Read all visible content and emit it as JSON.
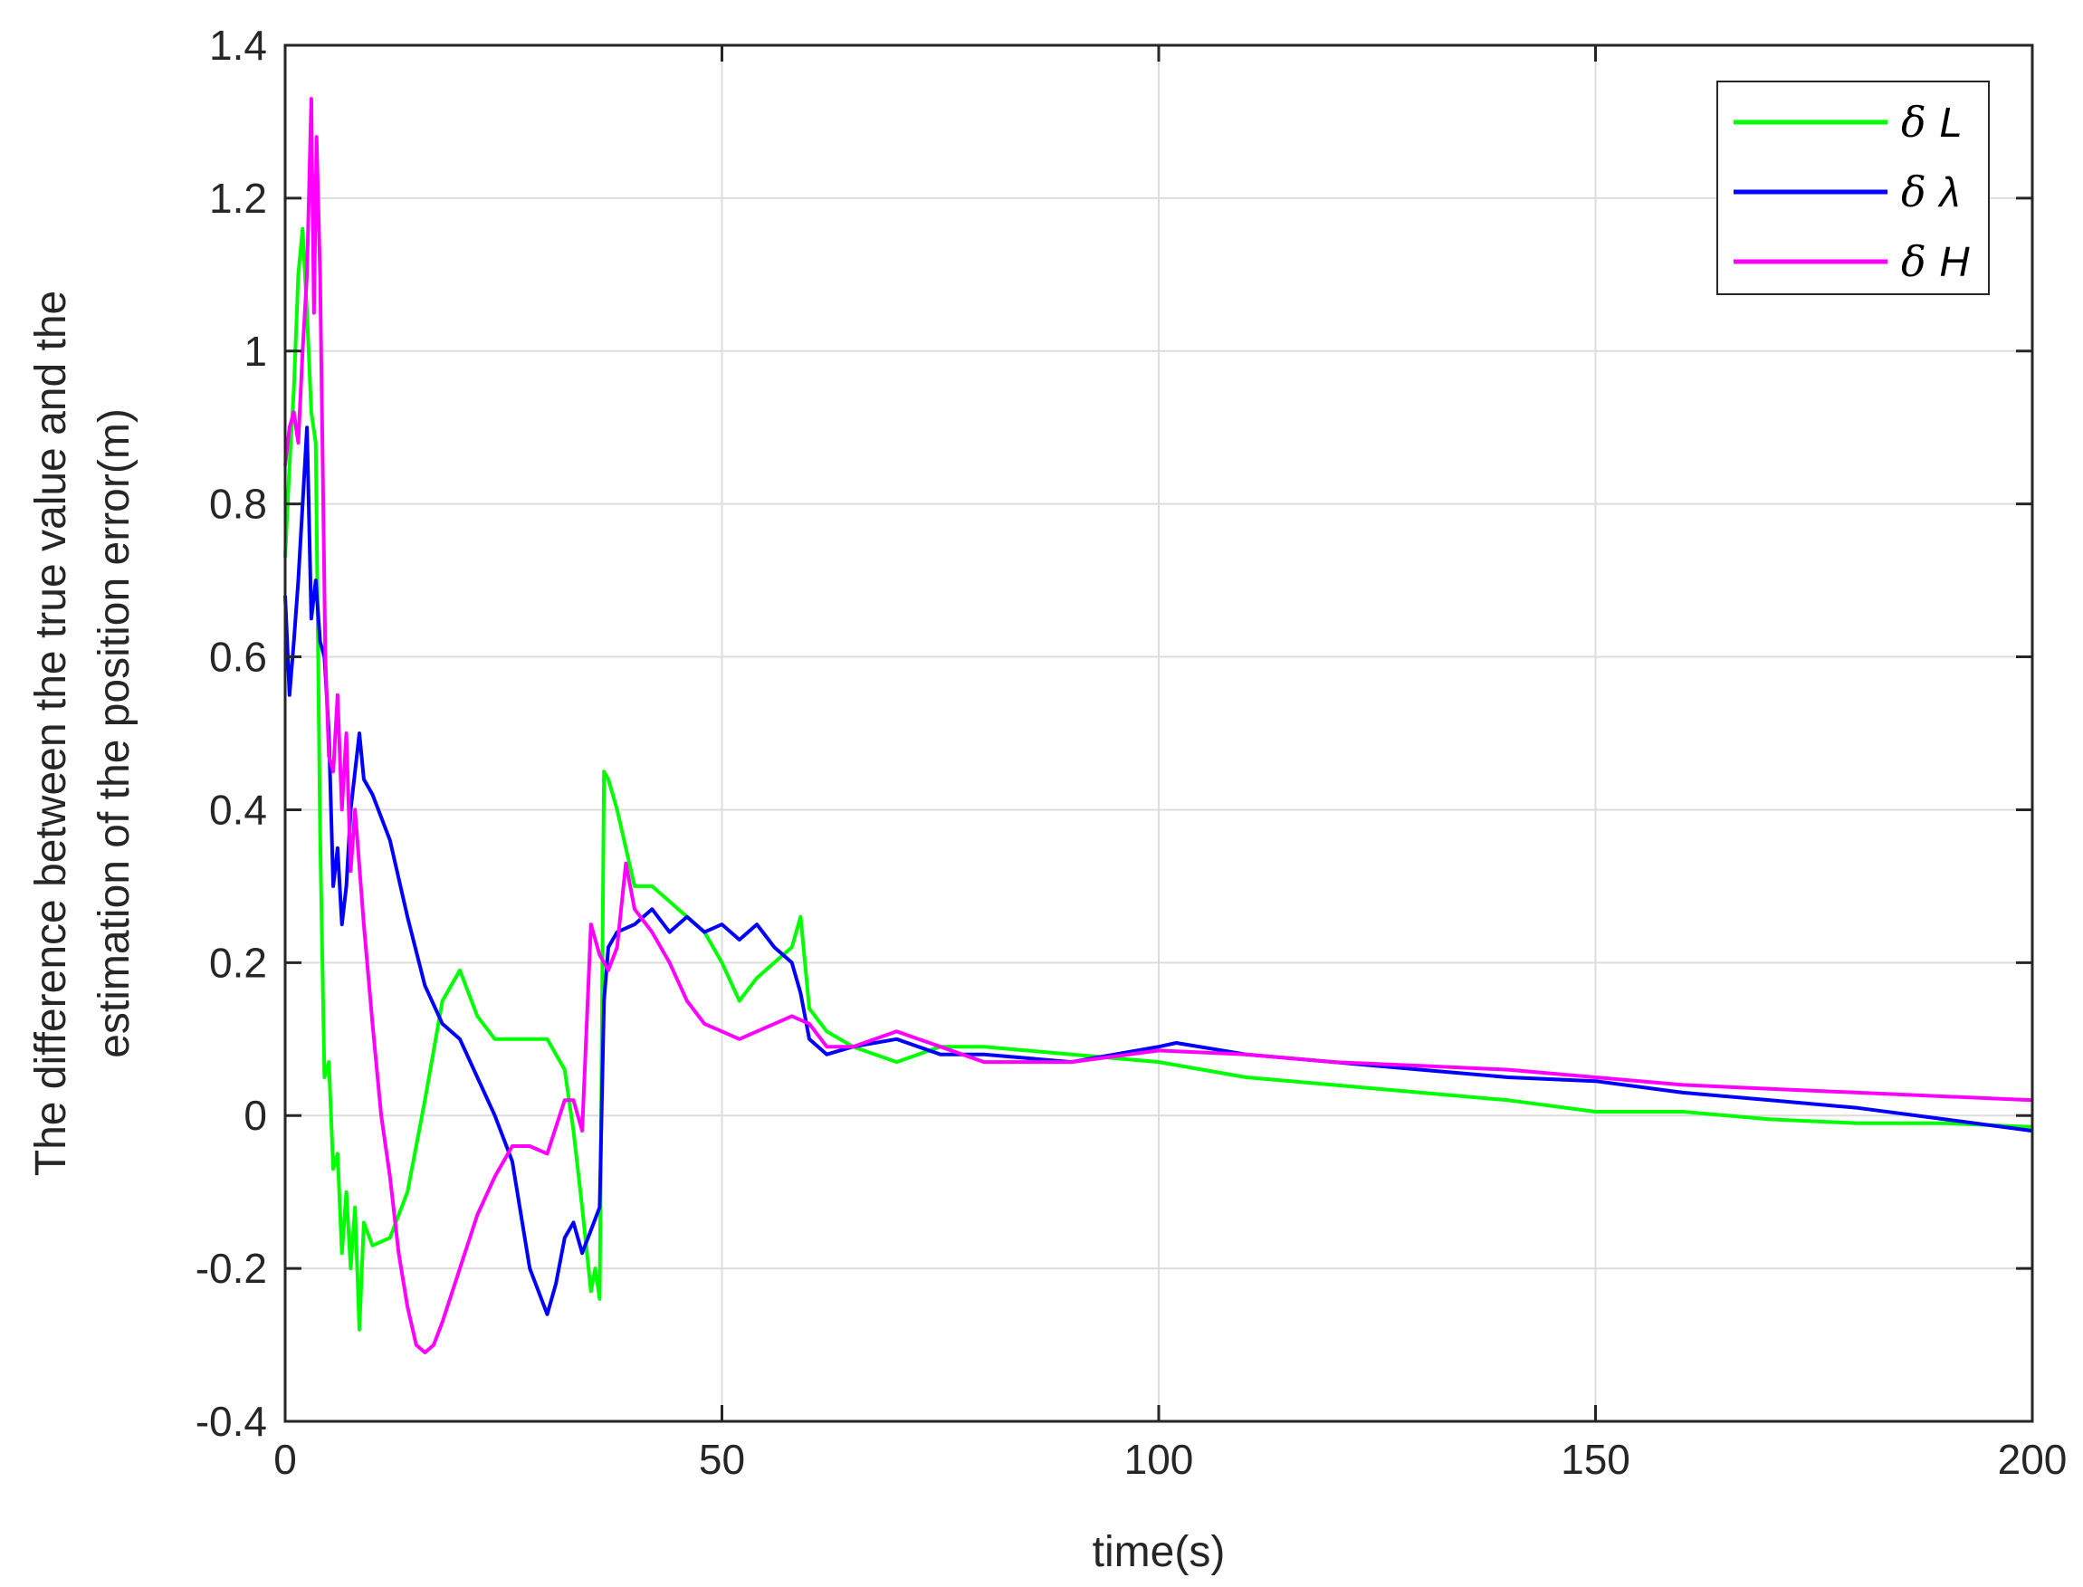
{
  "chart_data": {
    "type": "line",
    "title": "",
    "xlabel": "time(s)",
    "ylabel_lines": [
      "The difference between the true value and the",
      "estimation of the position error(m)"
    ],
    "xlim": [
      0,
      200
    ],
    "ylim": [
      -0.4,
      1.4
    ],
    "xticks": [
      0,
      50,
      100,
      150,
      200
    ],
    "xtick_labels": [
      "0",
      "50",
      "100",
      "150",
      "200"
    ],
    "yticks": [
      -0.4,
      -0.2,
      0,
      0.2,
      0.4,
      0.6,
      0.8,
      1.0,
      1.2,
      1.4
    ],
    "ytick_labels": [
      "-0.4",
      "-0.2",
      "0",
      "0.2",
      "0.4",
      "0.6",
      "0.8",
      "1",
      "1.2",
      "1.4"
    ],
    "grid": true,
    "legend_position": "top-right",
    "series": [
      {
        "name_symbol": "δ",
        "name_var": "L",
        "color": "#00ff00",
        "x": [
          0,
          0.5,
          1,
          1.5,
          2,
          2.5,
          3,
          3.5,
          4,
          4.5,
          5,
          5.5,
          6,
          6.5,
          7,
          7.5,
          8,
          8.5,
          9,
          10,
          12,
          14,
          16,
          18,
          20,
          22,
          24,
          26,
          28,
          30,
          32,
          33,
          34,
          35,
          35.5,
          36,
          36.5,
          37,
          38,
          40,
          42,
          44,
          46,
          48,
          50,
          52,
          54,
          56,
          58,
          59,
          60,
          62,
          65,
          70,
          75,
          80,
          90,
          100,
          110,
          120,
          130,
          140,
          150,
          160,
          170,
          180,
          190,
          200
        ],
        "y": [
          0.73,
          0.85,
          0.95,
          1.1,
          1.16,
          1.05,
          0.92,
          0.88,
          0.37,
          0.05,
          0.07,
          -0.07,
          -0.05,
          -0.18,
          -0.1,
          -0.2,
          -0.12,
          -0.28,
          -0.14,
          -0.17,
          -0.16,
          -0.1,
          0.02,
          0.15,
          0.19,
          0.13,
          0.1,
          0.1,
          0.1,
          0.1,
          0.06,
          -0.02,
          -0.12,
          -0.23,
          -0.2,
          -0.24,
          0.45,
          0.44,
          0.4,
          0.3,
          0.3,
          0.28,
          0.26,
          0.24,
          0.2,
          0.15,
          0.18,
          0.2,
          0.22,
          0.26,
          0.14,
          0.11,
          0.09,
          0.07,
          0.09,
          0.09,
          0.08,
          0.07,
          0.05,
          0.04,
          0.03,
          0.02,
          0.005,
          0.005,
          -0.005,
          -0.01,
          -0.01,
          -0.015
        ]
      },
      {
        "name_symbol": "δ",
        "name_var": "λ",
        "color": "#0000ff",
        "x": [
          0,
          0.5,
          1,
          1.5,
          2,
          2.5,
          3,
          3.5,
          4,
          4.5,
          5,
          5.5,
          6,
          6.5,
          7,
          7.5,
          8,
          8.5,
          9,
          10,
          12,
          14,
          16,
          18,
          20,
          22,
          24,
          26,
          28,
          30,
          31,
          32,
          33,
          34,
          35,
          36,
          36.5,
          37,
          38,
          40,
          42,
          44,
          46,
          48,
          50,
          52,
          54,
          56,
          58,
          59,
          60,
          62,
          65,
          70,
          75,
          80,
          90,
          100,
          102,
          110,
          120,
          130,
          140,
          150,
          160,
          170,
          180,
          190,
          200
        ],
        "y": [
          0.68,
          0.55,
          0.62,
          0.7,
          0.8,
          0.9,
          0.65,
          0.7,
          0.62,
          0.6,
          0.5,
          0.3,
          0.35,
          0.25,
          0.3,
          0.4,
          0.45,
          0.5,
          0.44,
          0.42,
          0.36,
          0.26,
          0.17,
          0.12,
          0.1,
          0.05,
          0.0,
          -0.06,
          -0.2,
          -0.26,
          -0.22,
          -0.16,
          -0.14,
          -0.18,
          -0.15,
          -0.12,
          0.15,
          0.22,
          0.24,
          0.25,
          0.27,
          0.24,
          0.26,
          0.24,
          0.25,
          0.23,
          0.25,
          0.22,
          0.2,
          0.16,
          0.1,
          0.08,
          0.09,
          0.1,
          0.08,
          0.08,
          0.07,
          0.09,
          0.095,
          0.08,
          0.07,
          0.06,
          0.05,
          0.045,
          0.03,
          0.02,
          0.01,
          -0.005,
          -0.02
        ]
      },
      {
        "name_symbol": "δ",
        "name_var": "H",
        "color": "#ff00ff",
        "x": [
          0,
          0.5,
          1,
          1.5,
          2,
          2.5,
          3,
          3.3,
          3.6,
          4,
          4.3,
          4.6,
          5,
          5.5,
          6,
          6.5,
          7,
          7.5,
          8,
          9,
          10,
          11,
          12,
          13,
          14,
          15,
          16,
          17,
          18,
          20,
          22,
          24,
          26,
          28,
          30,
          32,
          33,
          34,
          35,
          36,
          37,
          38,
          39,
          40,
          42,
          44,
          46,
          48,
          50,
          52,
          54,
          56,
          58,
          60,
          62,
          65,
          70,
          75,
          80,
          90,
          100,
          110,
          120,
          130,
          140,
          150,
          160,
          170,
          180,
          190,
          200
        ],
        "y": [
          0.85,
          0.9,
          0.92,
          0.88,
          1.0,
          1.1,
          1.33,
          1.05,
          1.28,
          1.1,
          0.85,
          0.6,
          0.47,
          0.45,
          0.55,
          0.4,
          0.5,
          0.32,
          0.4,
          0.25,
          0.12,
          0.0,
          -0.08,
          -0.18,
          -0.25,
          -0.3,
          -0.31,
          -0.3,
          -0.27,
          -0.2,
          -0.13,
          -0.08,
          -0.04,
          -0.04,
          -0.05,
          0.02,
          0.02,
          -0.02,
          0.25,
          0.21,
          0.19,
          0.22,
          0.33,
          0.27,
          0.24,
          0.2,
          0.15,
          0.12,
          0.11,
          0.1,
          0.11,
          0.12,
          0.13,
          0.12,
          0.09,
          0.09,
          0.11,
          0.09,
          0.07,
          0.07,
          0.085,
          0.08,
          0.07,
          0.065,
          0.06,
          0.05,
          0.04,
          0.035,
          0.03,
          0.025,
          0.02
        ]
      }
    ]
  }
}
